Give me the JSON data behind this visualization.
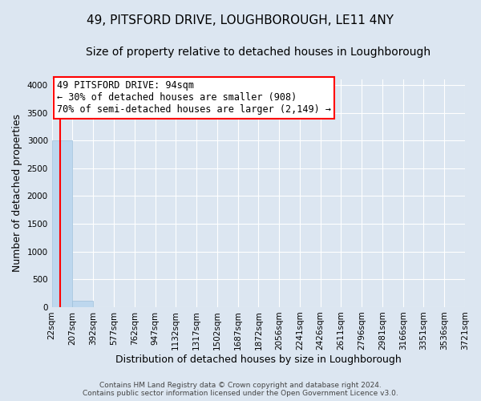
{
  "title": "49, PITSFORD DRIVE, LOUGHBOROUGH, LE11 4NY",
  "subtitle": "Size of property relative to detached houses in Loughborough",
  "xlabel": "Distribution of detached houses by size in Loughborough",
  "ylabel": "Number of detached properties",
  "footer_line1": "Contains HM Land Registry data © Crown copyright and database right 2024.",
  "footer_line2": "Contains public sector information licensed under the Open Government Licence v3.0.",
  "bar_edges": [
    22,
    207,
    392,
    577,
    762,
    947,
    1132,
    1317,
    1502,
    1687,
    1872,
    2056,
    2241,
    2426,
    2611,
    2796,
    2981,
    3166,
    3351,
    3536,
    3721
  ],
  "bar_heights": [
    3000,
    110,
    3,
    1,
    0,
    0,
    0,
    0,
    0,
    0,
    0,
    0,
    0,
    0,
    0,
    0,
    0,
    0,
    0,
    0
  ],
  "bar_color": "#bdd7ee",
  "bar_edge_color": "#9dbfda",
  "property_size": 94,
  "annotation_line1": "49 PITSFORD DRIVE: 94sqm",
  "annotation_line2": "← 30% of detached houses are smaller (908)",
  "annotation_line3": "70% of semi-detached houses are larger (2,149) →",
  "annotation_box_color": "red",
  "vline_color": "red",
  "ylim": [
    0,
    4100
  ],
  "yticks": [
    0,
    500,
    1000,
    1500,
    2000,
    2500,
    3000,
    3500,
    4000
  ],
  "bg_color": "#dce6f1",
  "plot_bg_color": "#dce6f1",
  "grid_color": "white",
  "title_fontsize": 11,
  "subtitle_fontsize": 10,
  "tick_label_fontsize": 7.5,
  "ylabel_fontsize": 9,
  "xlabel_fontsize": 9,
  "annotation_fontsize": 8.5
}
